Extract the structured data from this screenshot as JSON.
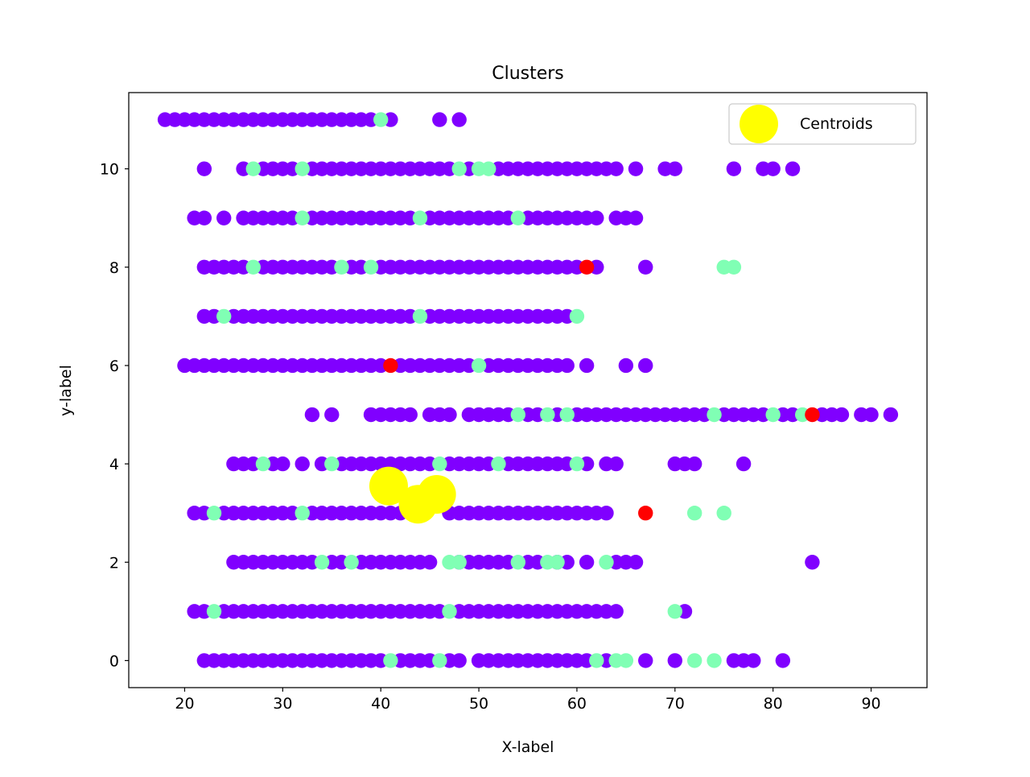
{
  "chart_data": {
    "type": "scatter",
    "title": "Clusters",
    "xlabel": "X-label",
    "ylabel": "y-label",
    "xlim": [
      14.3,
      95.7
    ],
    "ylim": [
      -0.55,
      11.55
    ],
    "xticks": [
      20,
      30,
      40,
      50,
      60,
      70,
      80,
      90
    ],
    "yticks": [
      0,
      2,
      4,
      6,
      8,
      10
    ],
    "grid": false,
    "legend": {
      "position": "top-right",
      "entries": [
        "Centroids"
      ]
    },
    "colors": {
      "cluster_0": "#8000ff",
      "cluster_1": "#80ffb4",
      "cluster_2": "#ff0000",
      "centroid": "#ffff00"
    },
    "series": [
      {
        "cluster": 0,
        "color": "#8000ff",
        "rows": [
          {
            "y": 11,
            "x": [
              18,
              19,
              20,
              21,
              22,
              23,
              24,
              25,
              26,
              27,
              28,
              29,
              30,
              31,
              32,
              33,
              34,
              35,
              36,
              37,
              38,
              39,
              41,
              46,
              48
            ]
          },
          {
            "y": 10,
            "x": [
              22,
              26,
              28,
              29,
              30,
              31,
              33,
              34,
              35,
              36,
              37,
              38,
              39,
              40,
              41,
              42,
              43,
              44,
              45,
              46,
              47,
              49,
              52,
              53,
              54,
              55,
              56,
              57,
              58,
              59,
              60,
              61,
              62,
              63,
              64,
              66,
              69,
              70,
              76,
              79,
              80,
              82
            ]
          },
          {
            "y": 9,
            "x": [
              21,
              22,
              24,
              26,
              27,
              28,
              29,
              30,
              31,
              33,
              34,
              35,
              36,
              37,
              38,
              39,
              40,
              41,
              42,
              43,
              45,
              46,
              47,
              48,
              49,
              50,
              51,
              52,
              53,
              55,
              56,
              57,
              58,
              59,
              60,
              61,
              62,
              64,
              65,
              66
            ]
          },
          {
            "y": 8,
            "x": [
              22,
              23,
              24,
              25,
              26,
              28,
              29,
              30,
              31,
              32,
              33,
              34,
              35,
              37,
              38,
              40,
              41,
              42,
              43,
              44,
              45,
              46,
              47,
              48,
              49,
              50,
              51,
              52,
              53,
              54,
              55,
              56,
              57,
              58,
              59,
              60,
              62,
              67
            ]
          },
          {
            "y": 7,
            "x": [
              22,
              23,
              25,
              26,
              27,
              28,
              29,
              30,
              31,
              32,
              33,
              34,
              35,
              36,
              37,
              38,
              39,
              40,
              41,
              42,
              43,
              45,
              46,
              47,
              48,
              49,
              50,
              51,
              52,
              53,
              54,
              55,
              56,
              57,
              58,
              59
            ]
          },
          {
            "y": 6,
            "x": [
              20,
              21,
              22,
              23,
              24,
              25,
              26,
              27,
              28,
              29,
              30,
              31,
              32,
              33,
              34,
              35,
              36,
              37,
              38,
              39,
              40,
              42,
              43,
              44,
              45,
              46,
              47,
              48,
              49,
              51,
              52,
              53,
              54,
              55,
              56,
              57,
              58,
              59,
              61,
              65,
              67
            ]
          },
          {
            "y": 5,
            "x": [
              33,
              35,
              39,
              40,
              41,
              42,
              43,
              45,
              46,
              47,
              49,
              50,
              51,
              52,
              53,
              55,
              56,
              58,
              60,
              61,
              62,
              63,
              64,
              65,
              66,
              67,
              68,
              69,
              70,
              71,
              72,
              73,
              75,
              76,
              77,
              78,
              79,
              81,
              82,
              85,
              86,
              87,
              89,
              90,
              92
            ]
          },
          {
            "y": 4,
            "x": [
              25,
              26,
              27,
              29,
              30,
              32,
              34,
              36,
              37,
              38,
              39,
              40,
              41,
              42,
              43,
              44,
              45,
              47,
              48,
              49,
              50,
              51,
              53,
              54,
              55,
              56,
              57,
              58,
              59,
              61,
              63,
              64,
              70,
              71,
              72,
              77
            ]
          },
          {
            "y": 3,
            "x": [
              21,
              22,
              24,
              25,
              26,
              27,
              28,
              29,
              30,
              31,
              33,
              34,
              35,
              36,
              37,
              38,
              39,
              40,
              41,
              42,
              47,
              48,
              49,
              50,
              51,
              52,
              53,
              54,
              55,
              56,
              57,
              58,
              59,
              60,
              61,
              62,
              63
            ]
          },
          {
            "y": 2,
            "x": [
              25,
              26,
              27,
              28,
              29,
              30,
              31,
              32,
              33,
              35,
              36,
              38,
              39,
              40,
              41,
              42,
              43,
              44,
              45,
              48,
              49,
              50,
              51,
              52,
              53,
              55,
              56,
              58,
              59,
              61,
              64,
              65,
              66,
              84
            ]
          },
          {
            "y": 1,
            "x": [
              21,
              22,
              24,
              25,
              26,
              27,
              28,
              29,
              30,
              31,
              32,
              33,
              34,
              35,
              36,
              37,
              38,
              39,
              40,
              41,
              42,
              43,
              44,
              45,
              46,
              48,
              49,
              50,
              51,
              52,
              53,
              54,
              55,
              56,
              57,
              58,
              59,
              60,
              61,
              62,
              63,
              64,
              71
            ]
          },
          {
            "y": 0,
            "x": [
              22,
              23,
              24,
              25,
              26,
              27,
              28,
              29,
              30,
              31,
              32,
              33,
              34,
              35,
              36,
              37,
              38,
              39,
              40,
              42,
              43,
              44,
              45,
              47,
              48,
              50,
              51,
              52,
              53,
              54,
              55,
              56,
              57,
              58,
              59,
              60,
              61,
              63,
              67,
              70,
              76,
              77,
              78,
              81
            ]
          }
        ]
      },
      {
        "cluster": 1,
        "color": "#80ffb4",
        "rows": [
          {
            "y": 11,
            "x": [
              40
            ]
          },
          {
            "y": 10,
            "x": [
              27,
              32,
              48,
              50,
              51
            ]
          },
          {
            "y": 9,
            "x": [
              32,
              44,
              54
            ]
          },
          {
            "y": 8,
            "x": [
              27,
              36,
              39,
              75,
              76
            ]
          },
          {
            "y": 7,
            "x": [
              24,
              44,
              60
            ]
          },
          {
            "y": 6,
            "x": [
              50
            ]
          },
          {
            "y": 5,
            "x": [
              54,
              57,
              59,
              74,
              80,
              83
            ]
          },
          {
            "y": 4,
            "x": [
              28,
              35,
              46,
              52,
              60
            ]
          },
          {
            "y": 3,
            "x": [
              23,
              32,
              72,
              75
            ]
          },
          {
            "y": 2,
            "x": [
              34,
              37,
              47,
              48,
              54,
              57,
              58,
              63
            ]
          },
          {
            "y": 1,
            "x": [
              23,
              47,
              70
            ]
          },
          {
            "y": 0,
            "x": [
              41,
              46,
              62,
              64,
              65,
              72,
              74
            ]
          }
        ]
      },
      {
        "cluster": 2,
        "color": "#ff0000",
        "rows": [
          {
            "y": 8,
            "x": [
              61
            ]
          },
          {
            "y": 6,
            "x": [
              41
            ]
          },
          {
            "y": 5,
            "x": [
              84
            ]
          },
          {
            "y": 3,
            "x": [
              67
            ]
          }
        ]
      }
    ],
    "centroids": {
      "name": "Centroids",
      "color": "#ffff00",
      "points": [
        {
          "x": 40.8,
          "y": 3.55
        },
        {
          "x": 43.8,
          "y": 3.18
        },
        {
          "x": 45.7,
          "y": 3.38
        }
      ]
    }
  }
}
